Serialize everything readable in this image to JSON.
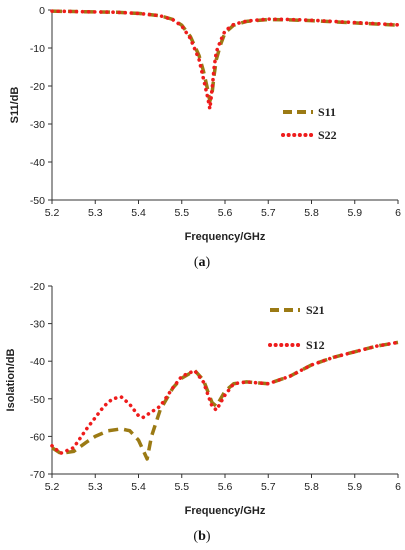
{
  "chart_data": [
    {
      "type": "line",
      "panel": "a",
      "caption_label": "a",
      "xlabel": "Frequency/GHz",
      "ylabel": "S11/dB",
      "xlim": [
        5.2,
        6.0
      ],
      "ylim": [
        -50,
        0
      ],
      "xticks": [
        "5.2",
        "5.3",
        "5.4",
        "5.5",
        "5.6",
        "5.7",
        "5.8",
        "5.9",
        "6"
      ],
      "yticks": [
        "0",
        "-10",
        "-20",
        "-30",
        "-40",
        "-50"
      ],
      "grid": false,
      "legend_position": "right",
      "series": [
        {
          "name": "S11",
          "color": "#9b7a14",
          "style": "dashed",
          "x": [
            5.2,
            5.25,
            5.3,
            5.35,
            5.4,
            5.45,
            5.48,
            5.5,
            5.52,
            5.54,
            5.55,
            5.56,
            5.565,
            5.57,
            5.575,
            5.58,
            5.59,
            5.6,
            5.62,
            5.65,
            5.7,
            5.75,
            5.8,
            5.85,
            5.9,
            5.95,
            6.0
          ],
          "y": [
            -0.3,
            -0.4,
            -0.5,
            -0.6,
            -0.9,
            -1.5,
            -2.5,
            -4.0,
            -7.0,
            -12.0,
            -16.0,
            -21.0,
            -24.0,
            -22.0,
            -17.0,
            -13.0,
            -9.0,
            -6.0,
            -4.0,
            -3.0,
            -2.5,
            -2.6,
            -2.8,
            -3.1,
            -3.4,
            -3.7,
            -4.0
          ]
        },
        {
          "name": "S22",
          "color": "#ee1c1c",
          "style": "dotted",
          "x": [
            5.2,
            5.25,
            5.3,
            5.35,
            5.4,
            5.45,
            5.48,
            5.5,
            5.52,
            5.54,
            5.55,
            5.56,
            5.565,
            5.57,
            5.575,
            5.58,
            5.59,
            5.6,
            5.62,
            5.65,
            5.7,
            5.75,
            5.8,
            5.85,
            5.9,
            5.95,
            6.0
          ],
          "y": [
            -0.3,
            -0.4,
            -0.5,
            -0.6,
            -0.9,
            -1.5,
            -2.6,
            -4.2,
            -7.5,
            -13.0,
            -18.0,
            -23.0,
            -26.0,
            -21.0,
            -15.0,
            -11.0,
            -8.0,
            -5.5,
            -3.8,
            -2.9,
            -2.4,
            -2.5,
            -2.7,
            -3.0,
            -3.3,
            -3.6,
            -3.9
          ]
        }
      ]
    },
    {
      "type": "line",
      "panel": "b",
      "caption_label": "b",
      "xlabel": "Frequency/GHz",
      "ylabel": "Isolation/dB",
      "xlim": [
        5.2,
        6.0
      ],
      "ylim": [
        -70,
        -20
      ],
      "xticks": [
        "5.2",
        "5.3",
        "5.4",
        "5.5",
        "5.6",
        "5.7",
        "5.8",
        "5.9",
        "6"
      ],
      "yticks": [
        "-20",
        "-30",
        "-40",
        "-50",
        "-60",
        "-70"
      ],
      "grid": false,
      "legend_position": "top-right",
      "series": [
        {
          "name": "S21",
          "color": "#9b7a14",
          "style": "dashed",
          "x": [
            5.2,
            5.22,
            5.25,
            5.28,
            5.3,
            5.33,
            5.36,
            5.38,
            5.4,
            5.42,
            5.43,
            5.45,
            5.48,
            5.5,
            5.53,
            5.55,
            5.57,
            5.58,
            5.6,
            5.62,
            5.65,
            5.7,
            5.75,
            5.8,
            5.85,
            5.9,
            5.95,
            6.0
          ],
          "y": [
            -63.0,
            -64.5,
            -64.0,
            -61.5,
            -60.0,
            -58.5,
            -58.0,
            -58.5,
            -61.0,
            -66.0,
            -60.0,
            -53.0,
            -47.0,
            -44.5,
            -42.5,
            -45.0,
            -51.0,
            -52.0,
            -48.0,
            -46.0,
            -45.5,
            -46.0,
            -44.0,
            -41.0,
            -39.0,
            -37.5,
            -36.0,
            -35.0
          ]
        },
        {
          "name": "S12",
          "color": "#ee1c1c",
          "style": "dotted",
          "x": [
            5.2,
            5.22,
            5.25,
            5.28,
            5.3,
            5.32,
            5.34,
            5.36,
            5.38,
            5.4,
            5.41,
            5.43,
            5.45,
            5.48,
            5.5,
            5.53,
            5.55,
            5.57,
            5.58,
            5.6,
            5.62,
            5.65,
            5.7,
            5.75,
            5.8,
            5.85,
            5.9,
            5.95,
            6.0
          ],
          "y": [
            -62.5,
            -64.5,
            -63.0,
            -58.0,
            -55.0,
            -52.0,
            -50.0,
            -49.5,
            -51.5,
            -54.5,
            -55.0,
            -53.5,
            -52.0,
            -47.0,
            -44.0,
            -42.5,
            -45.5,
            -52.0,
            -53.0,
            -49.0,
            -46.0,
            -45.5,
            -46.0,
            -44.0,
            -41.0,
            -39.0,
            -37.5,
            -36.0,
            -35.0
          ]
        }
      ]
    }
  ]
}
